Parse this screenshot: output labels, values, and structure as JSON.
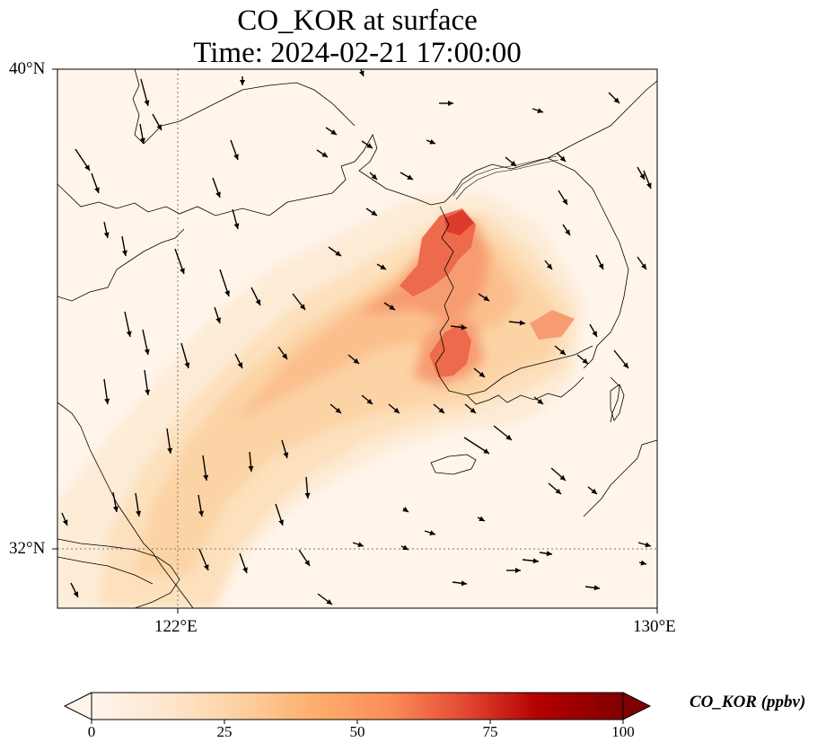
{
  "figure": {
    "title_line1": "CO_KOR at surface",
    "title_line2": "Time: 2024-02-21 17:00:00"
  },
  "axes": {
    "lat_ticks": [
      "40°N",
      "32°N"
    ],
    "lon_ticks": [
      "122°E",
      "130°E"
    ],
    "lon_range": [
      120,
      130
    ],
    "lat_range": [
      31,
      40
    ],
    "gridlines": "dotted"
  },
  "colorbar": {
    "label": "CO_KOR (ppbv)",
    "ticks": [
      "0",
      "25",
      "50",
      "75",
      "100"
    ],
    "range": [
      0,
      100
    ],
    "extend": "both",
    "colormap": [
      "#fff5eb",
      "#fdd49e",
      "#fdbb84",
      "#fc8d59",
      "#ef6548",
      "#d7301f",
      "#b30000",
      "#7f0000"
    ]
  },
  "map": {
    "background_color": "#fff5eb",
    "plume_colors": [
      "#fde9d2",
      "#fdd6a8",
      "#fcbf8b",
      "#f9a072",
      "#ef6d4d",
      "#dc3e2c"
    ],
    "vector_color": "#000000"
  }
}
